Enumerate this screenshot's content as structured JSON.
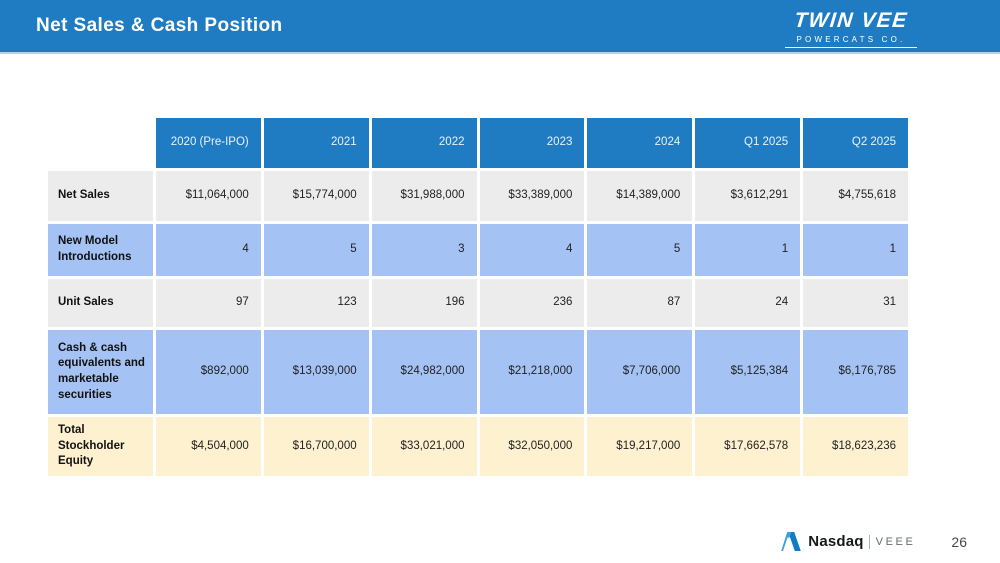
{
  "slide": {
    "title": "Net Sales & Cash Position",
    "page_number": "26"
  },
  "brand": {
    "logo_line1": "TWIN VEE",
    "logo_line2": "POWERCATS CO."
  },
  "footer": {
    "exchange": "Nasdaq",
    "ticker": "VEEE"
  },
  "table": {
    "columns": [
      "2020 (Pre-IPO)",
      "2021",
      "2022",
      "2023",
      "2024",
      "Q1 2025",
      "Q2 2025"
    ],
    "rows": [
      {
        "label": "Net Sales",
        "tone": "gray",
        "values": [
          "$11,064,000",
          "$15,774,000",
          "$31,988,000",
          "$33,389,000",
          "$14,389,000",
          "$3,612,291",
          "$4,755,618"
        ]
      },
      {
        "label": "New Model Introductions",
        "tone": "blue",
        "values": [
          "4",
          "5",
          "3",
          "4",
          "5",
          "1",
          "1"
        ]
      },
      {
        "label": "Unit Sales",
        "tone": "gray",
        "values": [
          "97",
          "123",
          "196",
          "236",
          "87",
          "24",
          "31"
        ]
      },
      {
        "label": "Cash & cash equivalents and marketable securities",
        "tone": "blue",
        "values": [
          "$892,000",
          "$13,039,000",
          "$24,982,000",
          "$21,218,000",
          "$7,706,000",
          "$5,125,384",
          "$6,176,785"
        ]
      },
      {
        "label": "Total Stockholder Equity",
        "tone": "cream",
        "values": [
          "$4,504,000",
          "$16,700,000",
          "$33,021,000",
          "$32,050,000",
          "$19,217,000",
          "$17,662,578",
          "$18,623,236"
        ]
      }
    ]
  },
  "colors": {
    "header_blue": "#1F7CC2",
    "header_border_light": "#B5D3E8",
    "row_gray": "#ECECEC",
    "row_blue": "#A4C2F4",
    "row_cream": "#FDF1CF",
    "nasdaq_blue_light": "#35A3DC",
    "nasdaq_blue_dark": "#0E7DC1"
  }
}
